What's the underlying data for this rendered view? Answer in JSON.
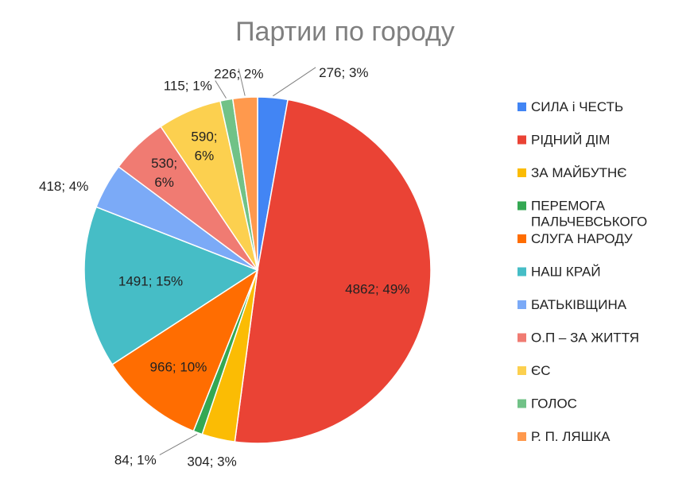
{
  "chart_data": {
    "type": "pie",
    "title": "Партии по городу",
    "slices": [
      {
        "name": "СИЛА і ЧЕСТЬ",
        "value": 276,
        "percent": "3%",
        "label": "276; 3%",
        "color": "#4285f4"
      },
      {
        "name": "РІДНИЙ ДІМ",
        "value": 4862,
        "percent": "49%",
        "label": "4862; 49%",
        "color": "#ea4335"
      },
      {
        "name": "ЗА МАЙБУТНЄ",
        "value": 304,
        "percent": "3%",
        "label": "304; 3%",
        "color": "#fbbc04"
      },
      {
        "name": "ПЕРЕМОГА ПАЛЬЧЕВСЬКОГО",
        "value": 84,
        "percent": "1%",
        "label": "84; 1%",
        "color": "#34a853"
      },
      {
        "name": "СЛУГА НАРОДУ",
        "value": 966,
        "percent": "10%",
        "label": "966; 10%",
        "color": "#ff6d01"
      },
      {
        "name": "НАШ  КРАЙ",
        "value": 1491,
        "percent": "15%",
        "label": "1491; 15%",
        "color": "#46bdc6"
      },
      {
        "name": "БАТЬКІВЩИНА",
        "value": 418,
        "percent": "4%",
        "label": "418; 4%",
        "color": "#7baaf7"
      },
      {
        "name": "О.П – ЗА ЖИТТЯ",
        "value": 530,
        "percent": "6%",
        "label": "530; 6%",
        "color": "#f07b72"
      },
      {
        "name": "ЄС",
        "value": 590,
        "percent": "6%",
        "label": "590; 6%",
        "color": "#fcd04f"
      },
      {
        "name": "ГОЛОС",
        "value": 115,
        "percent": "1%",
        "label": "115; 1%",
        "color": "#71c287"
      },
      {
        "name": "Р. П. ЛЯШКА",
        "value": 226,
        "percent": "2%",
        "label": "226; 2%",
        "color": "#ff994d"
      }
    ],
    "legend_position": "right"
  }
}
